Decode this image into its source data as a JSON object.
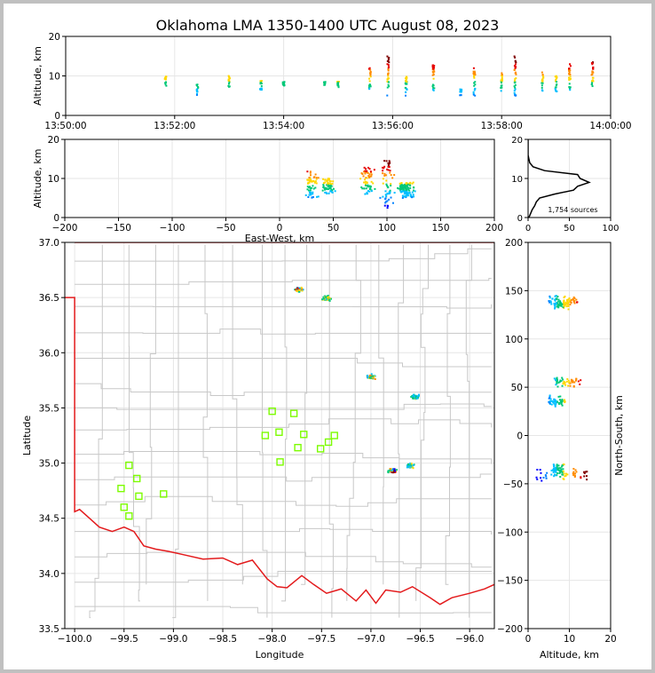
{
  "chart_data": {
    "type": "scatter",
    "title": "Oklahoma LMA 1350-1400 UTC August 08, 2023",
    "colors": {
      "frame": "#c0c0c0",
      "grid": "#e6e6e6",
      "county_lines": "#c8c8c8",
      "state_border": "#e31a1c",
      "stations": "#7cfc00",
      "altitude_profile": "#000000",
      "source_colormap": [
        "#0000ff",
        "#0080ff",
        "#00bfff",
        "#00c878",
        "#ffd700",
        "#ff8c00",
        "#e60000",
        "#800000"
      ]
    },
    "panels": {
      "time_altitude": {
        "ylabel": "Altitude, km",
        "ylim": [
          0,
          20
        ],
        "yticks": [
          "0",
          "10",
          "20"
        ],
        "xlim": [
          "13:50:00",
          "14:00:00"
        ],
        "xticks": [
          "13:50:00",
          "13:52:00",
          "13:54:00",
          "13:56:00",
          "13:58:00",
          "14:00:00"
        ],
        "grid": true
      },
      "ew_altitude": {
        "xlabel": "East-West, km",
        "ylabel": "Altitude, km",
        "xlim": [
          -200,
          200
        ],
        "ylim": [
          0,
          20
        ],
        "xticks": [
          "−200",
          "−150",
          "−100",
          "−50",
          "0",
          "50",
          "100",
          "150",
          "200"
        ],
        "yticks": [
          "0",
          "10",
          "20"
        ],
        "grid": true
      },
      "histogram": {
        "annotation": "1,754 sources",
        "xlim": [
          0,
          100
        ],
        "ylim": [
          0,
          20
        ],
        "xticks": [
          "0",
          "50",
          "100"
        ],
        "yticks": [
          "0",
          "10",
          "20"
        ],
        "grid": true
      },
      "plan_view": {
        "xlabel": "Longitude",
        "ylabel": "Latitude",
        "xlim": [
          -100.1,
          -95.75
        ],
        "ylim": [
          33.5,
          37.0
        ],
        "xticks": [
          "−100.0",
          "−99.5",
          "−99.0",
          "−98.5",
          "−98.0",
          "−97.5",
          "−97.0",
          "−96.5",
          "−96.0"
        ],
        "yticks": [
          "33.5",
          "34.0",
          "34.5",
          "35.0",
          "35.5",
          "36.0",
          "36.5",
          "37.0"
        ],
        "grid": true
      },
      "ns_altitude": {
        "xlabel": "Altitude, km",
        "ylabel": "North-South, km",
        "xlim": [
          0,
          20
        ],
        "ylim": [
          -200,
          200
        ],
        "xticks": [
          "0",
          "10",
          "20"
        ],
        "yticks": [
          "−200",
          "−150",
          "−100",
          "−50",
          "0",
          "50",
          "100",
          "150",
          "200"
        ],
        "grid": true
      }
    },
    "time_clusters": [
      {
        "t": "13:51:50",
        "z": [
          7.5,
          10
        ]
      },
      {
        "t": "13:52:25",
        "z": [
          5,
          8
        ]
      },
      {
        "t": "13:53:00",
        "z": [
          7,
          10
        ]
      },
      {
        "t": "13:53:35",
        "z": [
          6.5,
          9
        ]
      },
      {
        "t": "13:54:00",
        "z": [
          7.5,
          8.5
        ]
      },
      {
        "t": "13:54:45",
        "z": [
          7.5,
          8.5
        ]
      },
      {
        "t": "13:55:00",
        "z": [
          7,
          9
        ]
      },
      {
        "t": "13:55:35",
        "z": [
          6.5,
          12
        ]
      },
      {
        "t": "13:55:55",
        "z": [
          5,
          15
        ]
      },
      {
        "t": "13:56:15",
        "z": [
          5,
          10
        ]
      },
      {
        "t": "13:56:45",
        "z": [
          6,
          13
        ]
      },
      {
        "t": "13:57:15",
        "z": [
          5,
          7
        ]
      },
      {
        "t": "13:57:30",
        "z": [
          5,
          12
        ]
      },
      {
        "t": "13:58:00",
        "z": [
          6,
          11
        ]
      },
      {
        "t": "13:58:15",
        "z": [
          4,
          15
        ]
      },
      {
        "t": "13:58:45",
        "z": [
          6,
          11
        ]
      },
      {
        "t": "13:59:00",
        "z": [
          6,
          10
        ]
      },
      {
        "t": "13:59:15",
        "z": [
          6,
          13
        ]
      },
      {
        "t": "13:59:40",
        "z": [
          7,
          14
        ]
      }
    ],
    "source_clusters": [
      {
        "lon": -97.72,
        "lat": 36.57,
        "ew": 30,
        "ns": 140,
        "z": [
          5,
          12
        ]
      },
      {
        "lon": -97.45,
        "lat": 36.49,
        "ew": 45,
        "ns": 135,
        "z": [
          6,
          10
        ]
      },
      {
        "lon": -97.0,
        "lat": 35.78,
        "ew": 82,
        "ns": 55,
        "z": [
          6,
          13
        ]
      },
      {
        "lon": -96.78,
        "lat": 34.93,
        "ew": 100,
        "ns": -40,
        "z": [
          2,
          15
        ]
      },
      {
        "lon": -96.6,
        "lat": 34.97,
        "ew": 115,
        "ns": -35,
        "z": [
          6,
          9
        ]
      },
      {
        "lon": -96.55,
        "lat": 35.6,
        "ew": 120,
        "ns": 35,
        "z": [
          5,
          9
        ]
      }
    ],
    "altitude_histogram": [
      {
        "z": 0,
        "n": 1
      },
      {
        "z": 1,
        "n": 3
      },
      {
        "z": 2,
        "n": 5
      },
      {
        "z": 3,
        "n": 8
      },
      {
        "z": 4,
        "n": 10
      },
      {
        "z": 5,
        "n": 14
      },
      {
        "z": 6,
        "n": 32
      },
      {
        "z": 7,
        "n": 55
      },
      {
        "z": 8,
        "n": 60
      },
      {
        "z": 9,
        "n": 74
      },
      {
        "z": 10,
        "n": 63
      },
      {
        "z": 11,
        "n": 60
      },
      {
        "z": 12,
        "n": 20
      },
      {
        "z": 13,
        "n": 6
      },
      {
        "z": 14,
        "n": 2
      },
      {
        "z": 15,
        "n": 1
      },
      {
        "z": 16,
        "n": 0
      },
      {
        "z": 20,
        "n": 0
      }
    ],
    "stations": [
      {
        "lon": -98.0,
        "lat": 35.47
      },
      {
        "lon": -97.78,
        "lat": 35.45
      },
      {
        "lon": -98.07,
        "lat": 35.25
      },
      {
        "lon": -97.93,
        "lat": 35.28
      },
      {
        "lon": -97.68,
        "lat": 35.26
      },
      {
        "lon": -97.37,
        "lat": 35.25
      },
      {
        "lon": -97.43,
        "lat": 35.19
      },
      {
        "lon": -97.74,
        "lat": 35.14
      },
      {
        "lon": -97.51,
        "lat": 35.13
      },
      {
        "lon": -97.92,
        "lat": 35.01
      },
      {
        "lon": -99.45,
        "lat": 34.98
      },
      {
        "lon": -99.37,
        "lat": 34.86
      },
      {
        "lon": -99.53,
        "lat": 34.77
      },
      {
        "lon": -99.1,
        "lat": 34.72
      },
      {
        "lon": -99.35,
        "lat": 34.7
      },
      {
        "lon": -99.5,
        "lat": 34.6
      },
      {
        "lon": -99.45,
        "lat": 34.52
      }
    ]
  }
}
